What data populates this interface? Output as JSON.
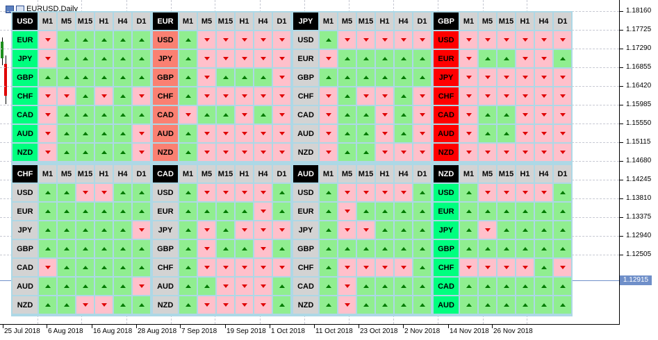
{
  "window": {
    "title": "EURUSD,Daily"
  },
  "timeframes": [
    "M1",
    "M5",
    "M15",
    "H1",
    "H4",
    "D1"
  ],
  "price_axis": {
    "labels": [
      "1.18160",
      "1.17725",
      "1.17290",
      "1.16855",
      "1.16420",
      "1.15985",
      "1.15550",
      "1.15115",
      "1.14680",
      "1.14245",
      "1.13810",
      "1.13375",
      "1.12940",
      "1.12505"
    ],
    "current_price": "1.12915"
  },
  "date_axis": {
    "labels": [
      "25 Jul 2018",
      "6 Aug 2018",
      "16 Aug 2018",
      "28 Aug 2018",
      "7 Sep 2018",
      "19 Sep 2018",
      "1 Oct 2018",
      "11 Oct 2018",
      "23 Oct 2018",
      "2 Nov 2018",
      "14 Nov 2018",
      "26 Nov 2018"
    ]
  },
  "panels": [
    {
      "base": "USD",
      "rows": [
        {
          "quote": "EUR",
          "q": "up",
          "s": "duuuuu"
        },
        {
          "quote": "JPY",
          "q": "up",
          "s": "duuuuu"
        },
        {
          "quote": "GBP",
          "q": "up",
          "s": "uuuuuu"
        },
        {
          "quote": "CHF",
          "q": "up",
          "s": "ddudud"
        },
        {
          "quote": "CAD",
          "q": "up",
          "s": "duuuuu"
        },
        {
          "quote": "AUD",
          "q": "up",
          "s": "duuuud"
        },
        {
          "quote": "NZD",
          "q": "up",
          "s": "duuuud"
        }
      ]
    },
    {
      "base": "EUR",
      "rows": [
        {
          "quote": "USD",
          "q": "down",
          "s": "uddddd"
        },
        {
          "quote": "JPY",
          "q": "down",
          "s": "uddddd"
        },
        {
          "quote": "GBP",
          "q": "down",
          "s": "uduuud"
        },
        {
          "quote": "CHF",
          "q": "down",
          "s": "uddddd"
        },
        {
          "quote": "CAD",
          "q": "down",
          "s": "duudud"
        },
        {
          "quote": "AUD",
          "q": "down",
          "s": "uddddd"
        },
        {
          "quote": "NZD",
          "q": "down",
          "s": "uddddd"
        }
      ]
    },
    {
      "base": "JPY",
      "rows": [
        {
          "quote": "USD",
          "q": "gray",
          "s": "uddddd"
        },
        {
          "quote": "EUR",
          "q": "gray",
          "s": "duuuuu"
        },
        {
          "quote": "GBP",
          "q": "gray",
          "s": "uuuuuu"
        },
        {
          "quote": "CHF",
          "q": "gray",
          "s": "duddud"
        },
        {
          "quote": "CAD",
          "q": "gray",
          "s": "duudud"
        },
        {
          "quote": "AUD",
          "q": "gray",
          "s": "duudud"
        },
        {
          "quote": "NZD",
          "q": "gray",
          "s": "duuddd"
        }
      ]
    },
    {
      "base": "GBP",
      "rows": [
        {
          "quote": "USD",
          "q": "strong",
          "s": "dddddd"
        },
        {
          "quote": "EUR",
          "q": "strong",
          "s": "duuddu"
        },
        {
          "quote": "JPY",
          "q": "strong",
          "s": "dddddd"
        },
        {
          "quote": "CHF",
          "q": "strong",
          "s": "dddddd"
        },
        {
          "quote": "CAD",
          "q": "strong",
          "s": "duuddd"
        },
        {
          "quote": "AUD",
          "q": "strong",
          "s": "duuddd"
        },
        {
          "quote": "NZD",
          "q": "strong",
          "s": "dddddd"
        }
      ]
    },
    {
      "base": "CHF",
      "rows": [
        {
          "quote": "USD",
          "q": "gray",
          "s": "uudduu"
        },
        {
          "quote": "EUR",
          "q": "gray",
          "s": "uuuuuu"
        },
        {
          "quote": "JPY",
          "q": "gray",
          "s": "uuuuud"
        },
        {
          "quote": "GBP",
          "q": "gray",
          "s": "uuuuuu"
        },
        {
          "quote": "CAD",
          "q": "gray",
          "s": "duuuuu"
        },
        {
          "quote": "AUD",
          "q": "gray",
          "s": "uuuuud"
        },
        {
          "quote": "NZD",
          "q": "gray",
          "s": "uudduu"
        }
      ]
    },
    {
      "base": "CAD",
      "rows": [
        {
          "quote": "USD",
          "q": "gray",
          "s": "uddddu"
        },
        {
          "quote": "EUR",
          "q": "gray",
          "s": "uuuudu"
        },
        {
          "quote": "JPY",
          "q": "gray",
          "s": "ududdd"
        },
        {
          "quote": "GBP",
          "q": "gray",
          "s": "uduudu"
        },
        {
          "quote": "CHF",
          "q": "gray",
          "s": "uddddd"
        },
        {
          "quote": "AUD",
          "q": "gray",
          "s": "uudddu"
        },
        {
          "quote": "NZD",
          "q": "gray",
          "s": "uddddu"
        }
      ]
    },
    {
      "base": "AUD",
      "rows": [
        {
          "quote": "USD",
          "q": "gray",
          "s": "uddddu"
        },
        {
          "quote": "EUR",
          "q": "gray",
          "s": "uduuuu"
        },
        {
          "quote": "JPY",
          "q": "gray",
          "s": "udduuu"
        },
        {
          "quote": "GBP",
          "q": "gray",
          "s": "uuuuuu"
        },
        {
          "quote": "CHF",
          "q": "gray",
          "s": "uddddu"
        },
        {
          "quote": "CAD",
          "q": "gray",
          "s": "uduuuu"
        },
        {
          "quote": "NZD",
          "q": "gray",
          "s": "uduuuu"
        }
      ]
    },
    {
      "base": "NZD",
      "rows": [
        {
          "quote": "USD",
          "q": "up",
          "s": "uddddu"
        },
        {
          "quote": "EUR",
          "q": "up",
          "s": "uuuuuu"
        },
        {
          "quote": "JPY",
          "q": "up",
          "s": "uduuuu"
        },
        {
          "quote": "GBP",
          "q": "up",
          "s": "uuuuuu"
        },
        {
          "quote": "CHF",
          "q": "up",
          "s": "ddddud"
        },
        {
          "quote": "CAD",
          "q": "up",
          "s": "uuuuuu"
        },
        {
          "quote": "AUD",
          "q": "up",
          "s": "uuuuuu"
        }
      ]
    }
  ]
}
